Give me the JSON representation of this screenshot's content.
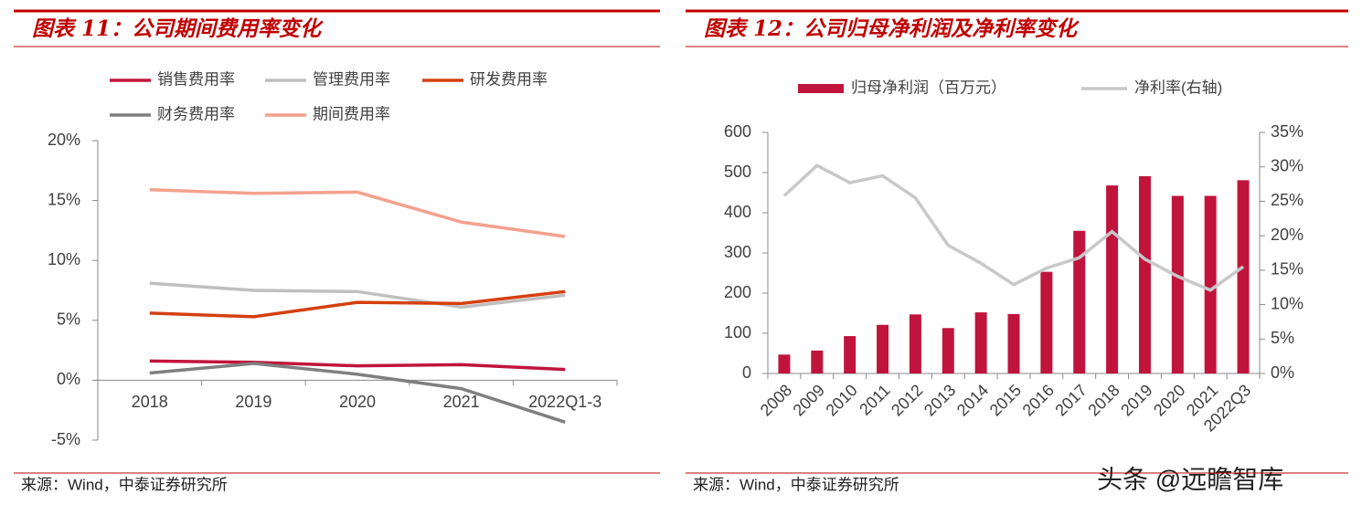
{
  "chart_data": [
    {
      "type": "line",
      "title": "图表 11：公司期间费用率变化",
      "source": "来源：Wind，中泰证券研究所",
      "categories": [
        "2018",
        "2019",
        "2020",
        "2021",
        "2022Q1-3"
      ],
      "series": [
        {
          "name": "销售费用率",
          "color": "#c0143c",
          "values": [
            1.6,
            1.5,
            1.2,
            1.3,
            0.9
          ]
        },
        {
          "name": "管理费用率",
          "color": "#bfbfbf",
          "values": [
            8.1,
            7.5,
            7.4,
            6.1,
            7.1
          ]
        },
        {
          "name": "研发费用率",
          "color": "#d4400f",
          "values": [
            5.6,
            5.3,
            6.5,
            6.4,
            7.4
          ]
        },
        {
          "name": "财务费用率",
          "color": "#7f7f7f",
          "values": [
            0.6,
            1.4,
            0.5,
            -0.7,
            -3.5
          ]
        },
        {
          "name": "期间费用率",
          "color": "#f4a18e",
          "values": [
            15.9,
            15.6,
            15.7,
            13.2,
            12.0
          ]
        }
      ],
      "ylim": [
        -5,
        20
      ],
      "yticks": [
        {
          "value": -5,
          "label": "-5%"
        },
        {
          "value": 0,
          "label": "0%"
        },
        {
          "value": 5,
          "label": "5%"
        },
        {
          "value": 10,
          "label": "10%"
        },
        {
          "value": 15,
          "label": "15%"
        },
        {
          "value": 20,
          "label": "20%"
        }
      ]
    },
    {
      "type": "bar",
      "title": "图表 12：公司归母净利润及净利率变化",
      "source": "来源：Wind，中泰证券研究所",
      "categories": [
        "2008",
        "2009",
        "2010",
        "2011",
        "2012",
        "2013",
        "2014",
        "2015",
        "2016",
        "2017",
        "2018",
        "2019",
        "2020",
        "2021",
        "2022Q3"
      ],
      "series": [
        {
          "name": "归母净利润（百万元）",
          "color": "#c0143c",
          "values": [
            47,
            57,
            93,
            121,
            147,
            113,
            152,
            148,
            253,
            355,
            468,
            491,
            442,
            442,
            481
          ]
        },
        {
          "name": "净利率(右轴)",
          "type": "line",
          "axis": "y2",
          "color": "#c8c8c8",
          "values": [
            25.8,
            30.2,
            27.7,
            28.7,
            25.5,
            18.6,
            16.0,
            12.9,
            15.3,
            16.8,
            20.6,
            16.6,
            14.1,
            12.1,
            15.5
          ]
        }
      ],
      "ylim": [
        0,
        600
      ],
      "yticks": [
        0,
        100,
        200,
        300,
        400,
        500,
        600
      ],
      "y2lim": [
        0,
        35
      ],
      "y2ticks": [
        {
          "value": 0,
          "label": "0%"
        },
        {
          "value": 5,
          "label": "5%"
        },
        {
          "value": 10,
          "label": "10%"
        },
        {
          "value": 15,
          "label": "15%"
        },
        {
          "value": 20,
          "label": "20%"
        },
        {
          "value": 25,
          "label": "25%"
        },
        {
          "value": 30,
          "label": "30%"
        },
        {
          "value": 35,
          "label": "35%"
        }
      ]
    }
  ],
  "watermark": "头条 @远瞻智库"
}
